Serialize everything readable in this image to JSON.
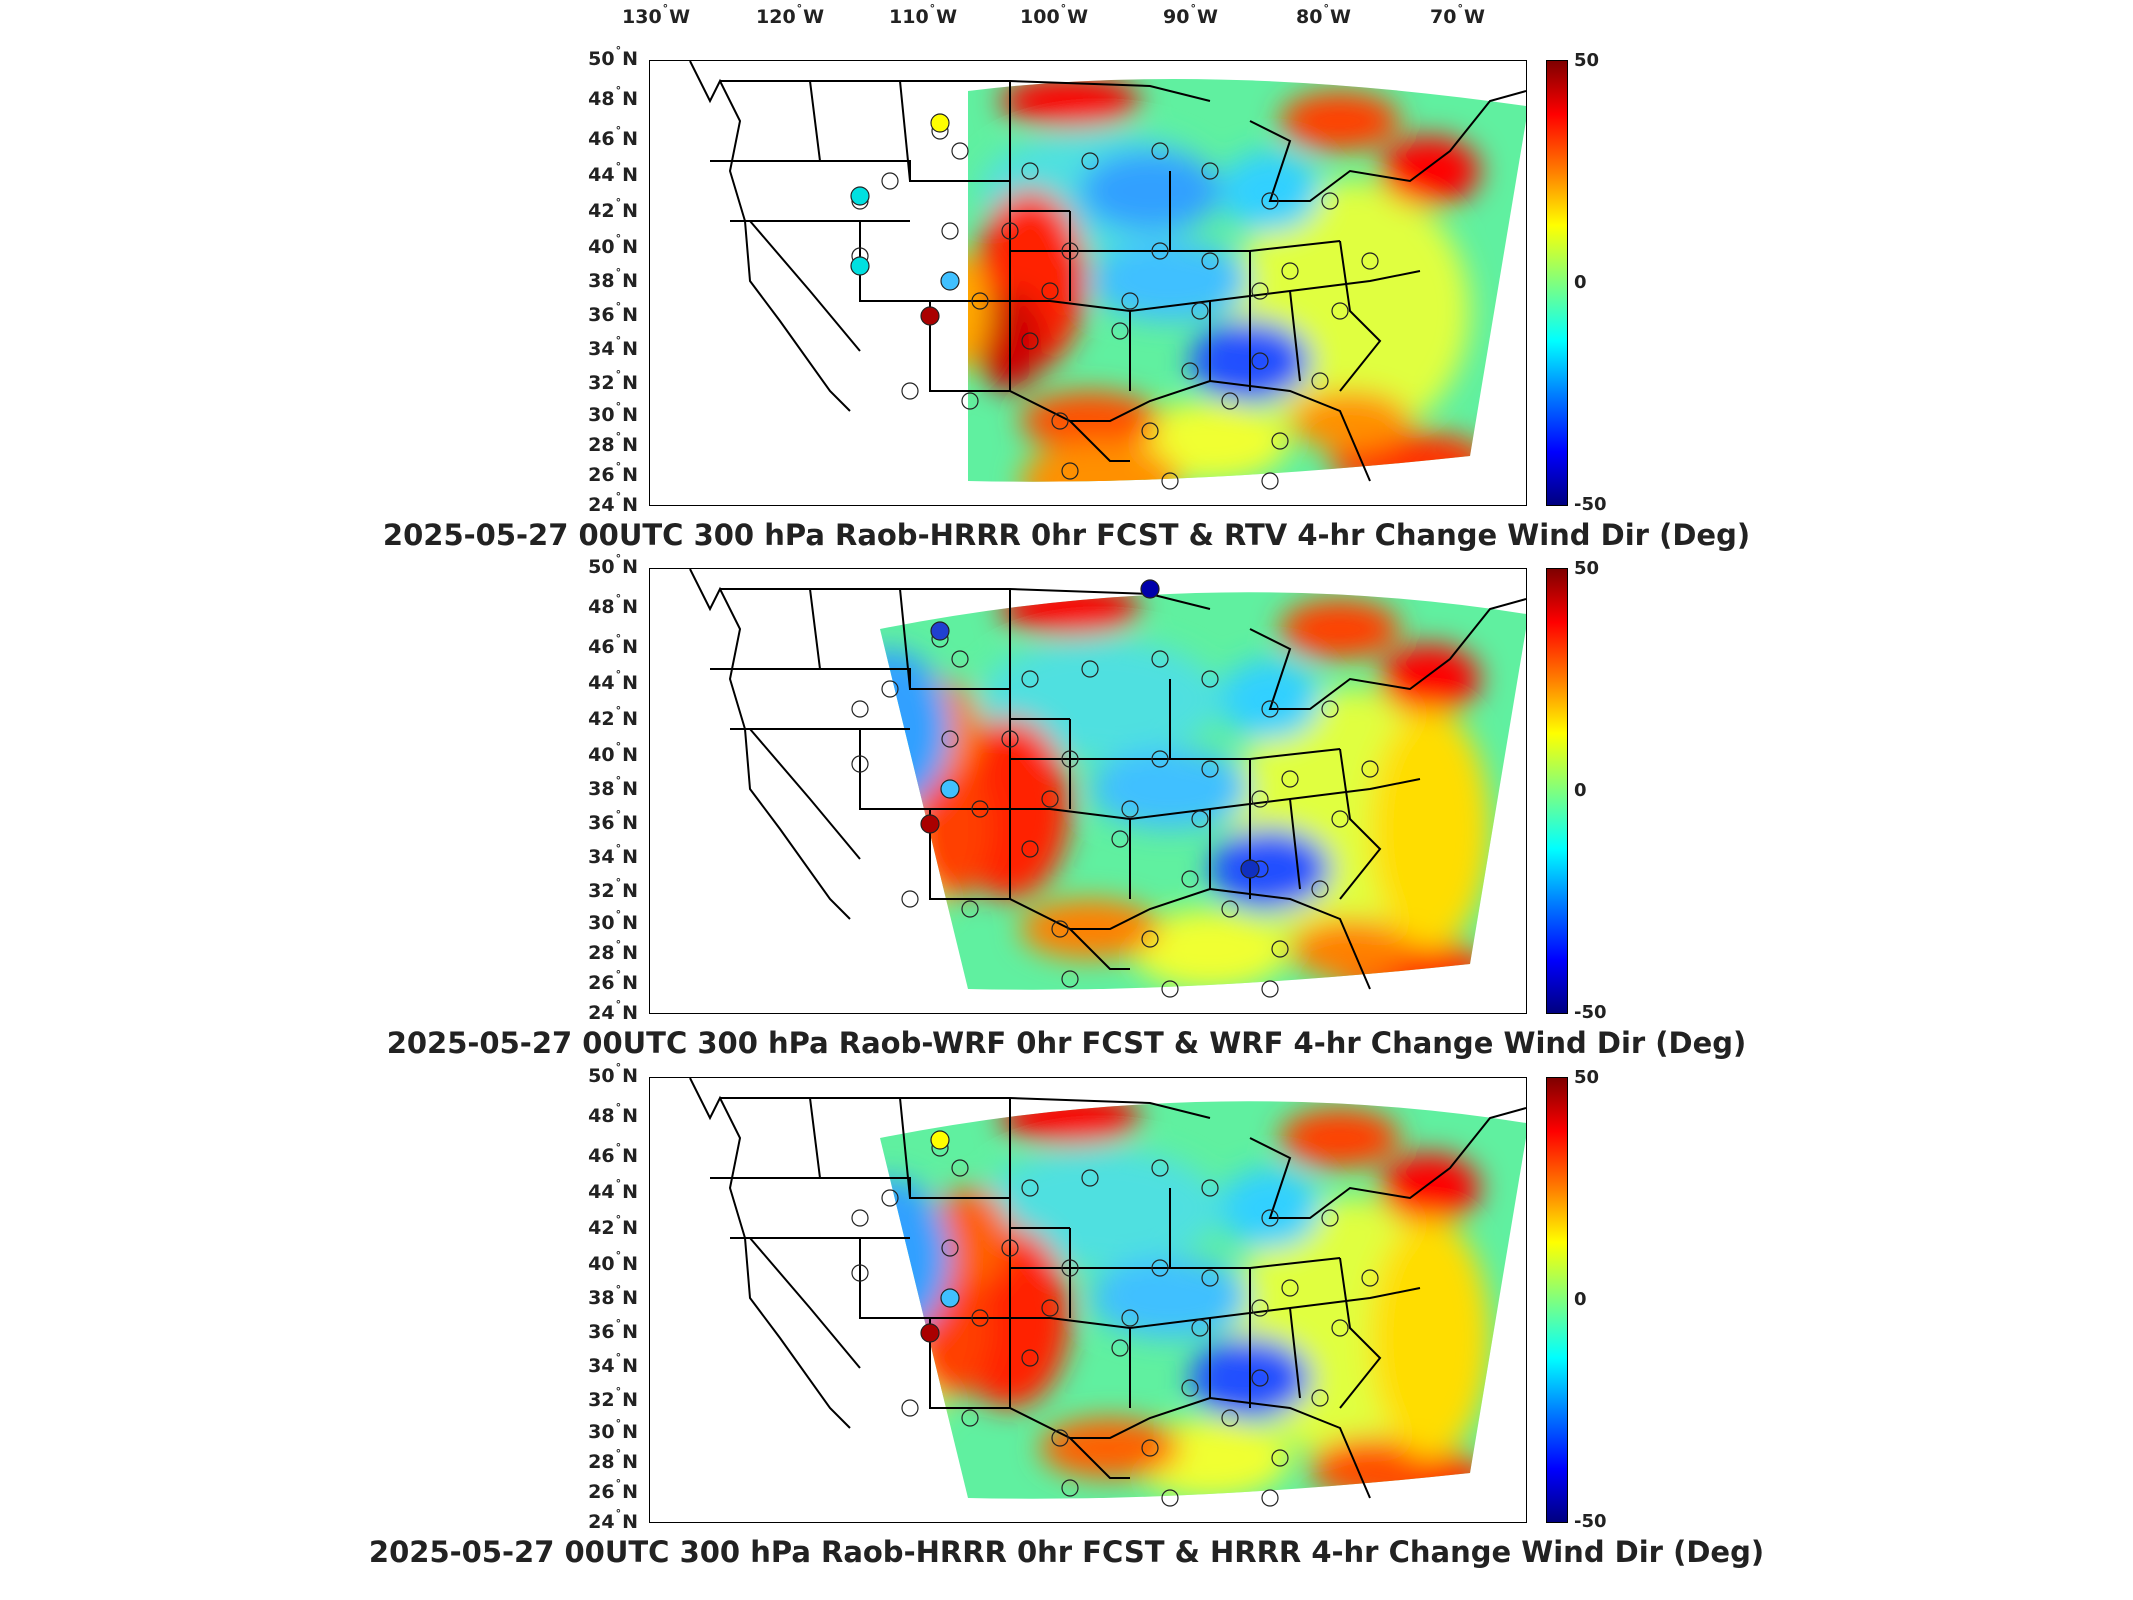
{
  "lon_labels": [
    {
      "deg": "130",
      "hemi": "W"
    },
    {
      "deg": "120",
      "hemi": "W"
    },
    {
      "deg": "110",
      "hemi": "W"
    },
    {
      "deg": "100",
      "hemi": "W"
    },
    {
      "deg": "90",
      "hemi": "W"
    },
    {
      "deg": "80",
      "hemi": "W"
    },
    {
      "deg": "70",
      "hemi": "W"
    }
  ],
  "lat_labels": [
    {
      "deg": "50",
      "hemi": "N"
    },
    {
      "deg": "48",
      "hemi": "N"
    },
    {
      "deg": "46",
      "hemi": "N"
    },
    {
      "deg": "44",
      "hemi": "N"
    },
    {
      "deg": "42",
      "hemi": "N"
    },
    {
      "deg": "40",
      "hemi": "N"
    },
    {
      "deg": "38",
      "hemi": "N"
    },
    {
      "deg": "36",
      "hemi": "N"
    },
    {
      "deg": "34",
      "hemi": "N"
    },
    {
      "deg": "32",
      "hemi": "N"
    },
    {
      "deg": "30",
      "hemi": "N"
    },
    {
      "deg": "28",
      "hemi": "N"
    },
    {
      "deg": "26",
      "hemi": "N"
    },
    {
      "deg": "24",
      "hemi": "N"
    }
  ],
  "colorbar": {
    "max": "50",
    "mid": "0",
    "min": "-50"
  },
  "panels": [
    {
      "title": "2025-05-27 00UTC 300 hPa Raob-HRRR 0hr FCST & RTV 4-hr Change Wind Dir (Deg)"
    },
    {
      "title": "2025-05-27 00UTC 300 hPa Raob-WRF 0hr FCST & WRF 4-hr Change Wind Dir (Deg)"
    },
    {
      "title": "2025-05-27 00UTC 300 hPa Raob-HRRR 0hr FCST & HRRR 4-hr Change Wind Dir (Deg)"
    }
  ],
  "colors": {
    "dark_red": "#7f0000",
    "red": "#ff0000",
    "orange": "#ff7f00",
    "yellow": "#ffff00",
    "green": "#7fff7f",
    "cyan": "#00ffff",
    "blue": "#0000ff",
    "dark_blue": "#00007f"
  }
}
